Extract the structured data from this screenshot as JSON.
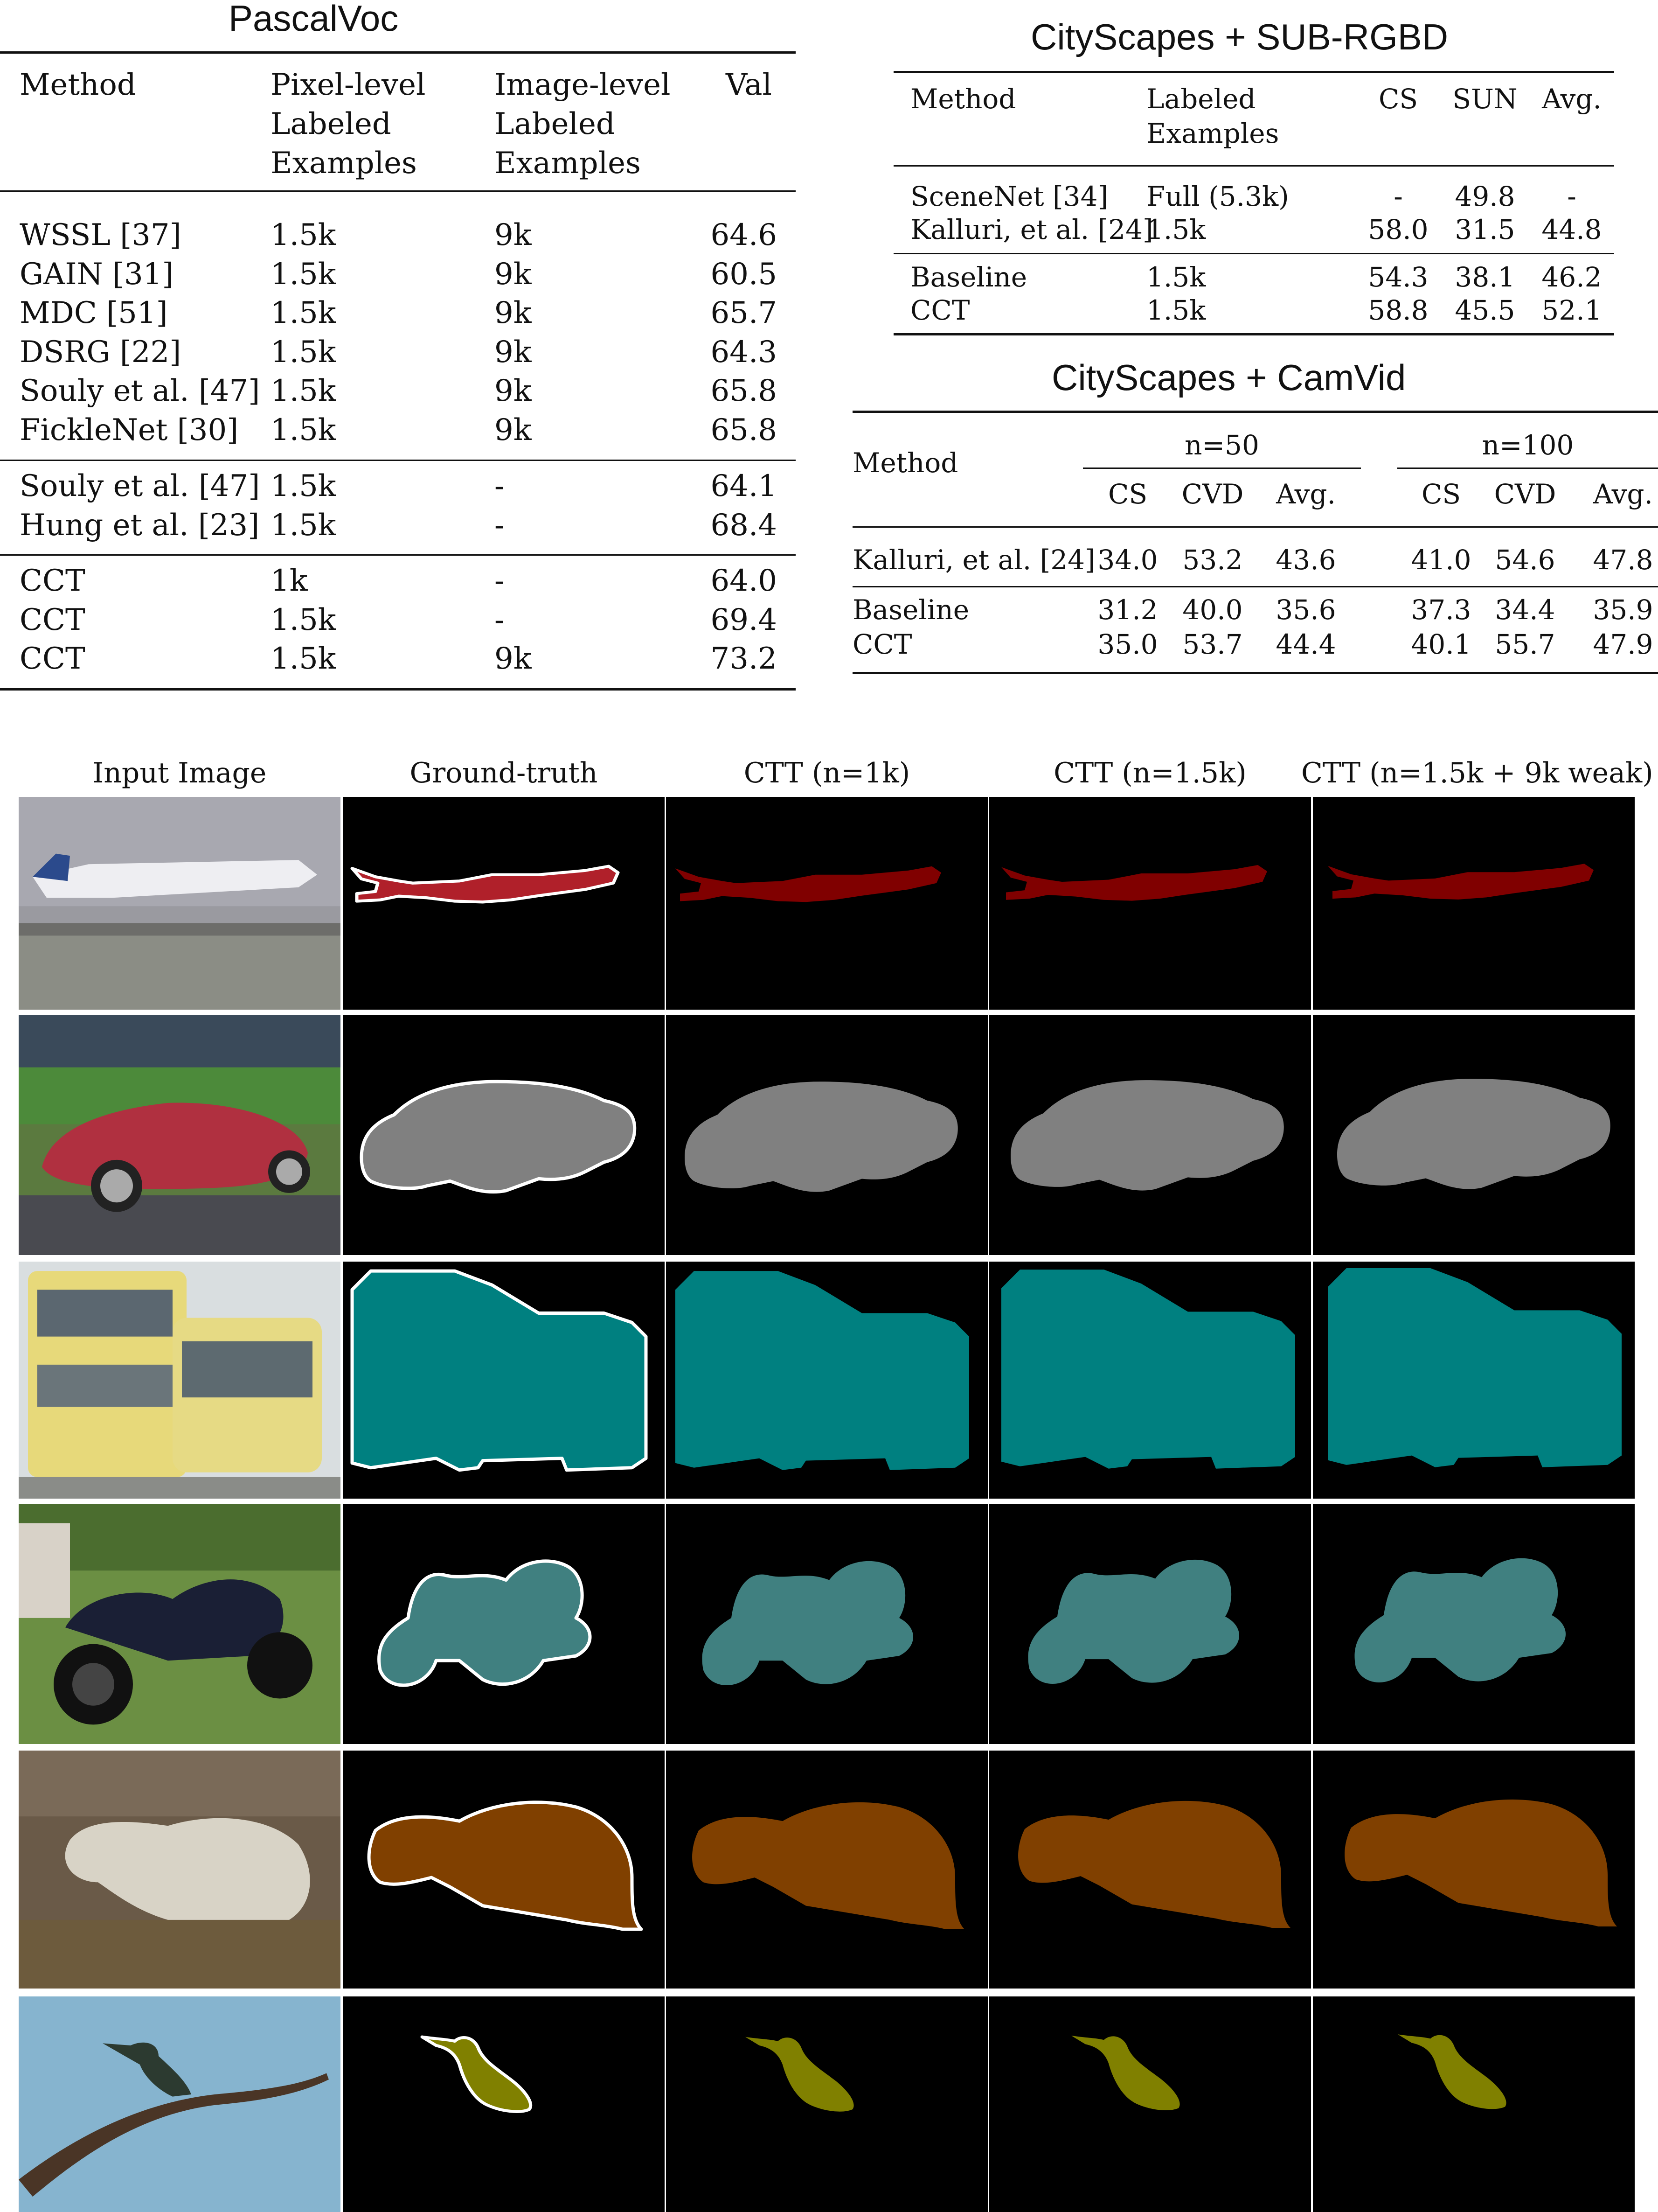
{
  "pascal": {
    "caption": "PascalVoc",
    "headers": [
      "Method",
      "Pixel-level\nLabeled\nExamples",
      "Image-level\nLabeled\nExamples",
      "Val"
    ],
    "header_lines": {
      "h0": "Method",
      "h1a": "Pixel-level",
      "h1b": "Labeled",
      "h1c": "Examples",
      "h2a": "Image-level",
      "h2b": "Labeled",
      "h2c": "Examples",
      "h3": "Val"
    },
    "group1": [
      {
        "method": "WSSL [37]",
        "pixel": "1.5k",
        "image": "9k",
        "val": "64.6"
      },
      {
        "method": "GAIN [31]",
        "pixel": "1.5k",
        "image": "9k",
        "val": "60.5"
      },
      {
        "method": "MDC [51]",
        "pixel": "1.5k",
        "image": "9k",
        "val": "65.7"
      },
      {
        "method": "DSRG [22]",
        "pixel": "1.5k",
        "image": "9k",
        "val": "64.3"
      },
      {
        "method": "Souly et al. [47]",
        "pixel": "1.5k",
        "image": "9k",
        "val": "65.8"
      },
      {
        "method": "FickleNet [30]",
        "pixel": "1.5k",
        "image": "9k",
        "val": "65.8"
      }
    ],
    "group2": [
      {
        "method": "Souly et al. [47]",
        "pixel": "1.5k",
        "image": "-",
        "val": "64.1"
      },
      {
        "method": "Hung et al. [23]",
        "pixel": "1.5k",
        "image": "-",
        "val": "68.4"
      }
    ],
    "group3": [
      {
        "method": "CCT",
        "pixel": "1k",
        "image": "-",
        "val": "64.0"
      },
      {
        "method": "CCT",
        "pixel": "1.5k",
        "image": "-",
        "val": "69.4"
      },
      {
        "method": "CCT",
        "pixel": "1.5k",
        "image": "9k",
        "val": "73.2"
      }
    ]
  },
  "sun": {
    "caption": "CityScapes + SUB-RGBD",
    "header": {
      "method": "Method",
      "labeled_a": "Labeled",
      "labeled_b": "Examples",
      "cs": "CS",
      "sun": "SUN",
      "avg": "Avg."
    },
    "group1": [
      {
        "method": "SceneNet [34]",
        "labeled": "Full (5.3k)",
        "cs": "-",
        "sun": "49.8",
        "avg": "-"
      },
      {
        "method": "Kalluri, et al. [24]",
        "labeled": "1.5k",
        "cs": "58.0",
        "sun": "31.5",
        "avg": "44.8"
      }
    ],
    "group2": [
      {
        "method": "Baseline",
        "labeled": "1.5k",
        "cs": "54.3",
        "sun": "38.1",
        "avg": "46.2"
      },
      {
        "method": "CCT",
        "labeled": "1.5k",
        "cs": "58.8",
        "sun": "45.5",
        "avg": "52.1"
      }
    ]
  },
  "camvid": {
    "caption": "CityScapes + CamVid",
    "header": {
      "method": "Method",
      "n50": "n=50",
      "n100": "n=100",
      "cs": "CS",
      "cvd": "CVD",
      "avg": "Avg."
    },
    "rows": [
      {
        "method": "Kalluri, et al. [24]",
        "v": [
          "34.0",
          "53.2",
          "43.6",
          "41.0",
          "54.6",
          "47.8"
        ]
      },
      {
        "method": "Baseline",
        "v": [
          "31.2",
          "40.0",
          "35.6",
          "37.3",
          "34.4",
          "35.9"
        ]
      },
      {
        "method": "CCT",
        "v": [
          "35.0",
          "53.7",
          "44.4",
          "40.1",
          "55.7",
          "47.9"
        ]
      }
    ]
  },
  "figure": {
    "columns": [
      "Input Image",
      "Ground-truth",
      "CTT (n=1k)",
      "CTT (n=1.5k)",
      "CTT (n=1.5k + 9k weak)"
    ],
    "rows": [
      {
        "object": "aeroplane",
        "color": "#800000"
      },
      {
        "object": "car",
        "color": "#808080"
      },
      {
        "object": "bus",
        "color": "#008080"
      },
      {
        "object": "motorbike",
        "color": "#408080"
      },
      {
        "object": "sheep",
        "color": "#804000"
      },
      {
        "object": "bird",
        "color": "#808000"
      }
    ]
  }
}
